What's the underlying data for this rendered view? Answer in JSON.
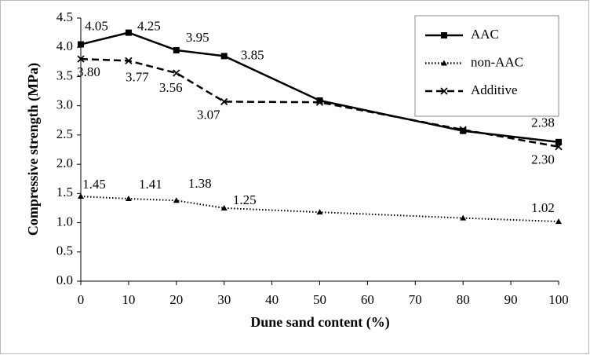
{
  "chart_data": {
    "type": "line",
    "x_label": "Dune sand content (%)",
    "y_label": "Compressive strength (MPa)",
    "x": [
      0,
      10,
      20,
      30,
      50,
      80,
      100
    ],
    "series": [
      {
        "name": "AAC",
        "color": "#000000",
        "line_style": "solid",
        "marker": "square",
        "values": [
          4.05,
          4.25,
          3.95,
          3.85,
          3.09,
          2.57,
          2.38
        ],
        "value_labels": [
          "4.05",
          "4.25",
          "3.95",
          "3.85",
          null,
          null,
          "2.38"
        ]
      },
      {
        "name": "non-AAC",
        "color": "#000000",
        "line_style": "dotted",
        "marker": "triangle",
        "values": [
          1.45,
          1.41,
          1.38,
          1.25,
          1.18,
          1.08,
          1.02
        ],
        "value_labels": [
          "1.45",
          "1.41",
          "1.38",
          "1.25",
          null,
          null,
          "1.02"
        ]
      },
      {
        "name": "Additive",
        "color": "#000000",
        "line_style": "dashed",
        "marker": "x",
        "values": [
          3.8,
          3.77,
          3.56,
          3.07,
          3.06,
          2.59,
          2.3
        ],
        "value_labels": [
          "3.80",
          "3.77",
          "3.56",
          "3.07",
          null,
          null,
          "2.30"
        ]
      }
    ],
    "xlim": [
      0,
      100
    ],
    "xticks": [
      0,
      10,
      20,
      30,
      40,
      50,
      60,
      70,
      80,
      90,
      100
    ],
    "ylim": [
      0,
      4.5
    ],
    "yticks": [
      {
        "value": 0,
        "label": "0.0"
      },
      {
        "value": 0.5,
        "label": "0.5"
      },
      {
        "value": 1,
        "label": "1.0"
      },
      {
        "value": 1.5,
        "label": "1.5"
      },
      {
        "value": 2,
        "label": "2.0"
      },
      {
        "value": 2.5,
        "label": "2.5"
      },
      {
        "value": 3,
        "label": "3.0"
      },
      {
        "value": 3.5,
        "label": "3.5"
      },
      {
        "value": 4,
        "label": "4.0"
      },
      {
        "value": 4.5,
        "label": "4.5"
      }
    ],
    "grid": false,
    "legend": "top-right"
  }
}
